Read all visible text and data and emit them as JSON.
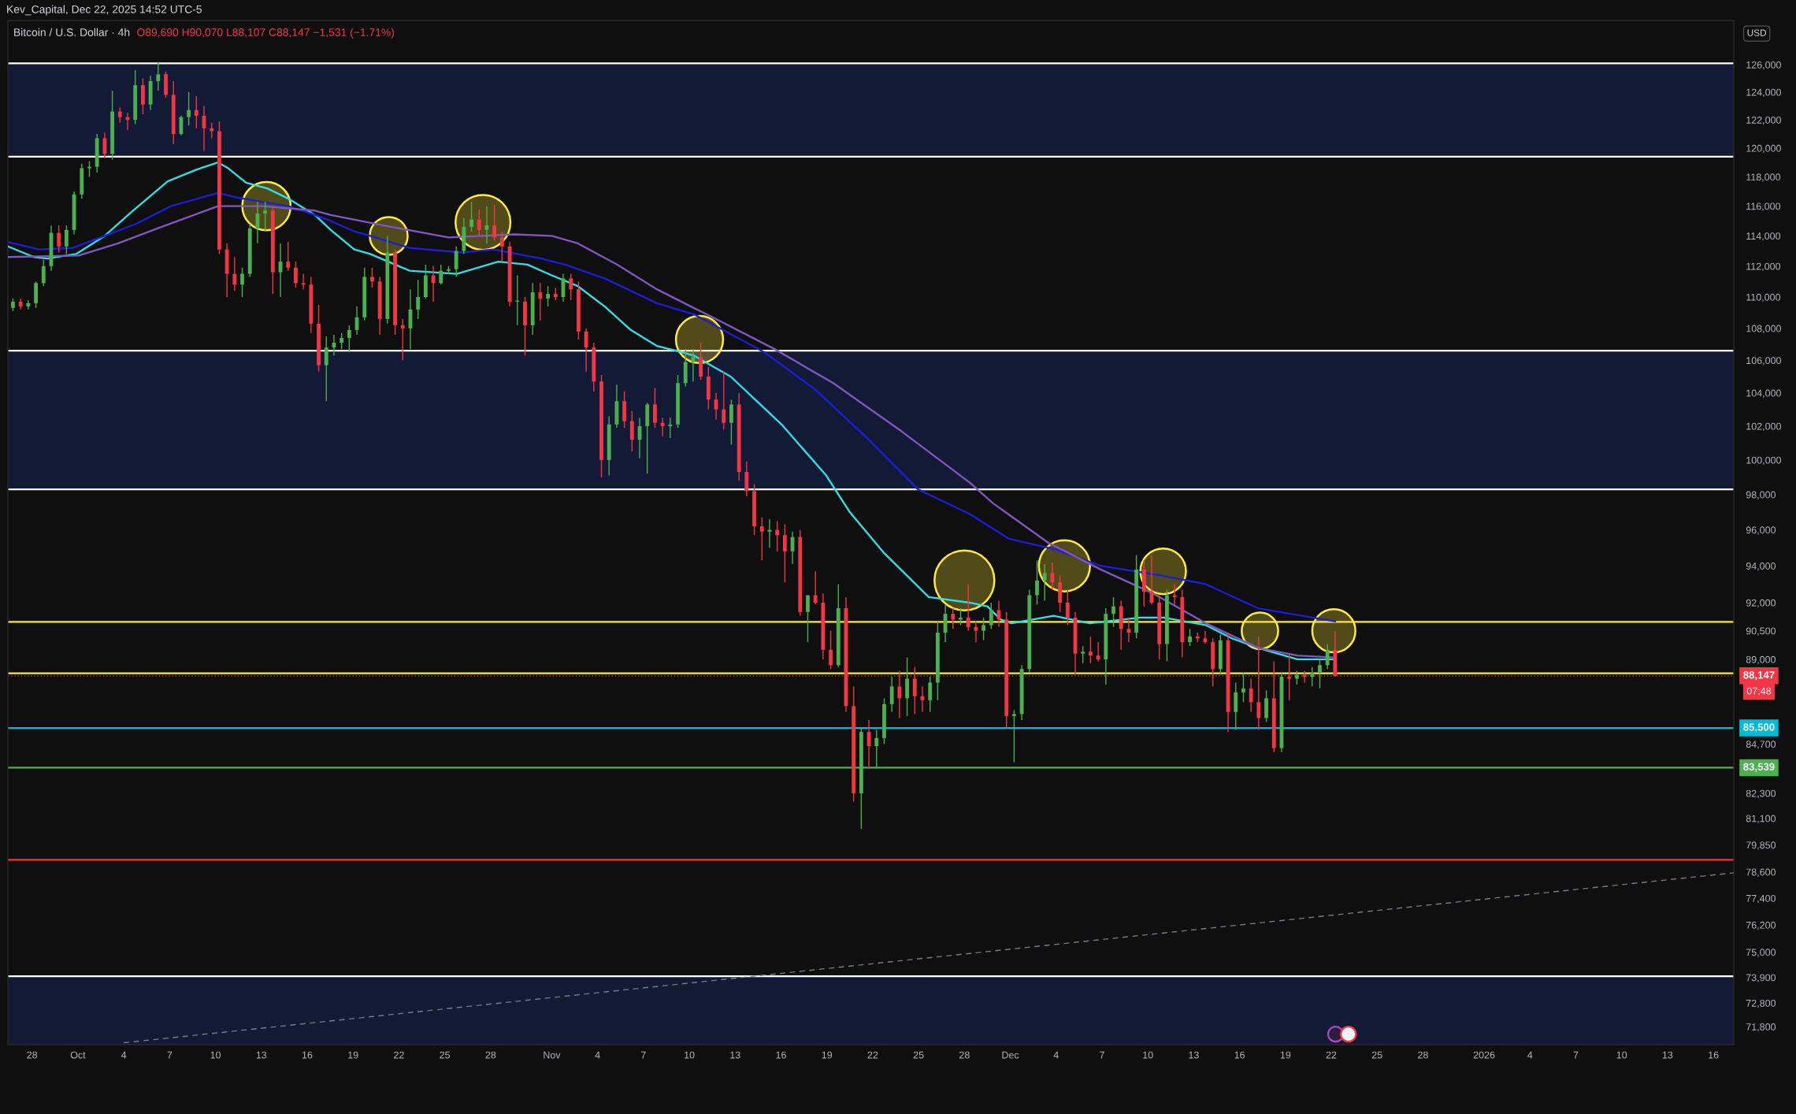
{
  "chart_data": {
    "type": "candlestick",
    "title": "Bitcoin / U.S. Dollar · 4h",
    "ylabel": "USD",
    "annotations": [
      "Kev_Capital, Dec 22, 2025 14:52 UTC-5",
      "O89,690 H90,070 L88,107 C88,147 −1,531 (−1.71%)",
      "07:48"
    ],
    "log": true,
    "xlim": [
      "2025-09-26T10:00",
      "2026-01-17T08:00"
    ],
    "ylim": [
      71050,
      129300
    ],
    "xticks": [
      {
        "value": "2025-09-28",
        "label": "28"
      },
      {
        "value": "2025-10-01",
        "label": "Oct"
      },
      {
        "value": "2025-10-04",
        "label": "4"
      },
      {
        "value": "2025-10-07",
        "label": "7"
      },
      {
        "value": "2025-10-10",
        "label": "10"
      },
      {
        "value": "2025-10-13",
        "label": "13"
      },
      {
        "value": "2025-10-16",
        "label": "16"
      },
      {
        "value": "2025-10-19",
        "label": "19"
      },
      {
        "value": "2025-10-22",
        "label": "22"
      },
      {
        "value": "2025-10-25",
        "label": "25"
      },
      {
        "value": "2025-10-28",
        "label": "28"
      },
      {
        "value": "2025-11-01",
        "label": "Nov"
      },
      {
        "value": "2025-11-04",
        "label": "4"
      },
      {
        "value": "2025-11-07",
        "label": "7"
      },
      {
        "value": "2025-11-10",
        "label": "10"
      },
      {
        "value": "2025-11-13",
        "label": "13"
      },
      {
        "value": "2025-11-16",
        "label": "16"
      },
      {
        "value": "2025-11-19",
        "label": "19"
      },
      {
        "value": "2025-11-22",
        "label": "22"
      },
      {
        "value": "2025-11-25",
        "label": "25"
      },
      {
        "value": "2025-11-28",
        "label": "28"
      },
      {
        "value": "2025-12-01",
        "label": "Dec"
      },
      {
        "value": "2025-12-04",
        "label": "4"
      },
      {
        "value": "2025-12-07",
        "label": "7"
      },
      {
        "value": "2025-12-10",
        "label": "10"
      },
      {
        "value": "2025-12-13",
        "label": "13"
      },
      {
        "value": "2025-12-16",
        "label": "16"
      },
      {
        "value": "2025-12-19",
        "label": "19"
      },
      {
        "value": "2025-12-22",
        "label": "22"
      },
      {
        "value": "2025-12-25",
        "label": "25"
      },
      {
        "value": "2025-12-28",
        "label": "28"
      },
      {
        "value": "2026-01-01",
        "label": "2026"
      },
      {
        "value": "2026-01-04",
        "label": "4"
      },
      {
        "value": "2026-01-07",
        "label": "7"
      },
      {
        "value": "2026-01-10",
        "label": "10"
      },
      {
        "value": "2026-01-13",
        "label": "13"
      },
      {
        "value": "2026-01-16",
        "label": "16"
      }
    ],
    "yticks": [
      {
        "value": 126000,
        "label": "126,000"
      },
      {
        "value": 124000,
        "label": "124,000"
      },
      {
        "value": 122000,
        "label": "122,000"
      },
      {
        "value": 120000,
        "label": "120,000"
      },
      {
        "value": 118000,
        "label": "118,000"
      },
      {
        "value": 116000,
        "label": "116,000"
      },
      {
        "value": 114000,
        "label": "114,000"
      },
      {
        "value": 112000,
        "label": "112,000"
      },
      {
        "value": 110000,
        "label": "110,000"
      },
      {
        "value": 108000,
        "label": "108,000"
      },
      {
        "value": 106000,
        "label": "106,000"
      },
      {
        "value": 104000,
        "label": "104,000"
      },
      {
        "value": 102000,
        "label": "102,000"
      },
      {
        "value": 100000,
        "label": "100,000"
      },
      {
        "value": 98000,
        "label": "98,000"
      },
      {
        "value": 96000,
        "label": "96,000"
      },
      {
        "value": 94000,
        "label": "94,000"
      },
      {
        "value": 92000,
        "label": "92,000"
      },
      {
        "value": 90500,
        "label": "90,500"
      },
      {
        "value": 89000,
        "label": "89,000"
      },
      {
        "value": 84700,
        "label": "84,700"
      },
      {
        "value": 82300,
        "label": "82,300"
      },
      {
        "value": 81100,
        "label": "81,100"
      },
      {
        "value": 79850,
        "label": "79,850"
      },
      {
        "value": 78600,
        "label": "78,600"
      },
      {
        "value": 77400,
        "label": "77,400"
      },
      {
        "value": 76200,
        "label": "76,200"
      },
      {
        "value": 75000,
        "label": "75,000"
      },
      {
        "value": 73900,
        "label": "73,900"
      },
      {
        "value": 72800,
        "label": "72,800"
      },
      {
        "value": 71800,
        "label": "71,800"
      }
    ],
    "bands": [
      {
        "axis": "y",
        "from": 119400,
        "to": 126100,
        "color": "#131a35"
      },
      {
        "axis": "y",
        "from": 98300,
        "to": 106600,
        "color": "#131a35"
      },
      {
        "axis": "y",
        "from": 71050,
        "to": 73950,
        "color": "#131a35"
      }
    ],
    "ref_lines": [
      {
        "axis": "y",
        "value": 126100,
        "color": "#ffffff"
      },
      {
        "axis": "y",
        "value": 119400,
        "color": "#ffffff"
      },
      {
        "axis": "y",
        "value": 106600,
        "color": "#ffffff"
      },
      {
        "axis": "y",
        "value": 98300,
        "color": "#ffffff"
      },
      {
        "axis": "y",
        "value": 90970,
        "color": "#ffeb3b"
      },
      {
        "axis": "y",
        "value": 88280,
        "color": "#ffeb3b"
      },
      {
        "axis": "y",
        "value": 88147,
        "label": "88,147",
        "color": "#f23645",
        "line_style": "dotted"
      },
      {
        "axis": "y",
        "value": 85500,
        "label": "85,500",
        "color": "#00bcd4"
      },
      {
        "axis": "y",
        "value": 83539,
        "label": "83,539",
        "color": "#4caf50"
      },
      {
        "axis": "y",
        "value": 79160,
        "color": "#f23645"
      },
      {
        "axis": "y",
        "value": 73950,
        "color": "#ffffff"
      }
    ],
    "series": [
      {
        "x": [
          "2025-09-26T18:00",
          "2025-09-27T06:00",
          "2025-09-27T18:00",
          "2025-09-28T06:00",
          "2025-09-28T18:00",
          "2025-09-29T06:00",
          "2025-09-29T18:00",
          "2025-09-30T06:00",
          "2025-09-30T18:00",
          "2025-10-01T06:00",
          "2025-10-01T18:00",
          "2025-10-02T06:00",
          "2025-10-02T18:00",
          "2025-10-03T06:00",
          "2025-10-03T18:00",
          "2025-10-04T06:00",
          "2025-10-04T18:00",
          "2025-10-05T06:00",
          "2025-10-05T18:00",
          "2025-10-06T06:00",
          "2025-10-06T18:00",
          "2025-10-07T06:00",
          "2025-10-07T18:00",
          "2025-10-08T06:00",
          "2025-10-08T18:00",
          "2025-10-09T06:00",
          "2025-10-09T18:00",
          "2025-10-10T06:00",
          "2025-10-10T18:00",
          "2025-10-11T06:00",
          "2025-10-11T18:00",
          "2025-10-12T06:00",
          "2025-10-12T18:00",
          "2025-10-13T06:00",
          "2025-10-13T18:00",
          "2025-10-14T06:00",
          "2025-10-14T18:00",
          "2025-10-15T06:00",
          "2025-10-15T18:00",
          "2025-10-16T06:00",
          "2025-10-16T18:00",
          "2025-10-17T06:00",
          "2025-10-17T18:00",
          "2025-10-18T06:00",
          "2025-10-18T18:00",
          "2025-10-19T06:00",
          "2025-10-19T18:00",
          "2025-10-20T06:00",
          "2025-10-20T18:00",
          "2025-10-21T06:00",
          "2025-10-21T18:00",
          "2025-10-22T06:00",
          "2025-10-22T18:00",
          "2025-10-23T06:00",
          "2025-10-23T18:00",
          "2025-10-24T06:00",
          "2025-10-24T18:00",
          "2025-10-25T06:00",
          "2025-10-25T18:00",
          "2025-10-26T06:00",
          "2025-10-26T18:00",
          "2025-10-27T06:00",
          "2025-10-27T18:00",
          "2025-10-28T06:00",
          "2025-10-28T18:00",
          "2025-10-29T06:00",
          "2025-10-29T18:00",
          "2025-10-30T06:00",
          "2025-10-30T18:00",
          "2025-10-31T06:00",
          "2025-10-31T18:00",
          "2025-11-01T06:00",
          "2025-11-01T18:00",
          "2025-11-02T06:00",
          "2025-11-02T18:00",
          "2025-11-03T06:00",
          "2025-11-03T18:00",
          "2025-11-04T06:00",
          "2025-11-04T18:00",
          "2025-11-05T06:00",
          "2025-11-05T18:00",
          "2025-11-06T06:00",
          "2025-11-06T18:00",
          "2025-11-07T06:00",
          "2025-11-07T18:00",
          "2025-11-08T06:00",
          "2025-11-08T18:00",
          "2025-11-09T06:00",
          "2025-11-09T18:00",
          "2025-11-10T06:00",
          "2025-11-10T18:00",
          "2025-11-11T06:00",
          "2025-11-11T18:00",
          "2025-11-12T06:00",
          "2025-11-12T18:00",
          "2025-11-13T06:00",
          "2025-11-13T18:00",
          "2025-11-14T06:00",
          "2025-11-14T18:00",
          "2025-11-15T06:00",
          "2025-11-15T18:00",
          "2025-11-16T06:00",
          "2025-11-16T18:00",
          "2025-11-17T06:00",
          "2025-11-17T18:00",
          "2025-11-18T06:00",
          "2025-11-18T18:00",
          "2025-11-19T06:00",
          "2025-11-19T18:00",
          "2025-11-20T06:00",
          "2025-11-20T18:00",
          "2025-11-21T06:00",
          "2025-11-21T18:00",
          "2025-11-22T06:00",
          "2025-11-22T18:00",
          "2025-11-23T06:00",
          "2025-11-23T18:00",
          "2025-11-24T06:00",
          "2025-11-24T18:00",
          "2025-11-25T06:00",
          "2025-11-25T18:00",
          "2025-11-26T06:00",
          "2025-11-26T18:00",
          "2025-11-27T06:00",
          "2025-11-27T18:00",
          "2025-11-28T06:00",
          "2025-11-28T18:00",
          "2025-11-29T06:00",
          "2025-11-29T18:00",
          "2025-11-30T06:00",
          "2025-11-30T18:00",
          "2025-12-01T06:00",
          "2025-12-01T18:00",
          "2025-12-02T06:00",
          "2025-12-02T18:00",
          "2025-12-03T06:00",
          "2025-12-03T18:00",
          "2025-12-04T06:00",
          "2025-12-04T18:00",
          "2025-12-05T06:00",
          "2025-12-05T18:00",
          "2025-12-06T06:00",
          "2025-12-06T18:00",
          "2025-12-07T06:00",
          "2025-12-07T18:00",
          "2025-12-08T06:00",
          "2025-12-08T18:00",
          "2025-12-09T06:00",
          "2025-12-09T18:00",
          "2025-12-10T06:00",
          "2025-12-10T18:00",
          "2025-12-11T06:00",
          "2025-12-11T18:00",
          "2025-12-12T06:00",
          "2025-12-12T18:00",
          "2025-12-13T06:00",
          "2025-12-13T18:00",
          "2025-12-14T06:00",
          "2025-12-14T18:00",
          "2025-12-15T06:00",
          "2025-12-15T18:00",
          "2025-12-16T06:00",
          "2025-12-16T18:00",
          "2025-12-17T06:00",
          "2025-12-17T18:00",
          "2025-12-18T06:00",
          "2025-12-18T18:00",
          "2025-12-19T06:00",
          "2025-12-19T18:00",
          "2025-12-20T06:00",
          "2025-12-20T18:00",
          "2025-12-21T06:00",
          "2025-12-21T18:00",
          "2025-12-22T06:00"
        ],
        "ohlc": [
          [
            109300,
            109900,
            109100,
            109700
          ],
          [
            109700,
            109900,
            109200,
            109400
          ],
          [
            109400,
            109800,
            109200,
            109600
          ],
          [
            109600,
            111000,
            109300,
            110900
          ],
          [
            110900,
            112400,
            110700,
            112000
          ],
          [
            112000,
            114700,
            111700,
            114200
          ],
          [
            114200,
            114700,
            112900,
            113300
          ],
          [
            113300,
            114700,
            112800,
            114400
          ],
          [
            114400,
            117000,
            114100,
            116800
          ],
          [
            116800,
            118900,
            116500,
            118600
          ],
          [
            118600,
            119100,
            118000,
            118700
          ],
          [
            118700,
            121000,
            118300,
            120700
          ],
          [
            120700,
            121100,
            119300,
            119600
          ],
          [
            119600,
            124100,
            119200,
            122600
          ],
          [
            122600,
            122900,
            121800,
            122200
          ],
          [
            122200,
            122500,
            121300,
            122000
          ],
          [
            122000,
            125600,
            121700,
            124500
          ],
          [
            124500,
            125000,
            122400,
            123100
          ],
          [
            123100,
            125200,
            122700,
            124800
          ],
          [
            124800,
            126200,
            124100,
            125300
          ],
          [
            125300,
            125500,
            123600,
            123800
          ],
          [
            123800,
            124800,
            120300,
            121000
          ],
          [
            121000,
            122300,
            120900,
            122200
          ],
          [
            122200,
            124000,
            121600,
            122700
          ],
          [
            122700,
            123700,
            121400,
            122300
          ],
          [
            122300,
            123000,
            119800,
            121400
          ],
          [
            121400,
            121800,
            120700,
            121200
          ],
          [
            121200,
            121900,
            112800,
            113100
          ],
          [
            113100,
            113500,
            110000,
            111500
          ],
          [
            111500,
            112600,
            110400,
            110800
          ],
          [
            110800,
            111900,
            110000,
            111500
          ],
          [
            111500,
            114800,
            111300,
            114500
          ],
          [
            114500,
            116300,
            113500,
            115500
          ],
          [
            115500,
            116300,
            114300,
            115700
          ],
          [
            115700,
            116000,
            110200,
            111600
          ],
          [
            111600,
            113500,
            110000,
            112300
          ],
          [
            112300,
            113600,
            111700,
            111900
          ],
          [
            111900,
            112300,
            110600,
            110900
          ],
          [
            110900,
            111500,
            110500,
            110800
          ],
          [
            110800,
            111300,
            107700,
            108300
          ],
          [
            108300,
            109500,
            105300,
            105700
          ],
          [
            105700,
            107500,
            103500,
            106800
          ],
          [
            106800,
            107600,
            106300,
            107100
          ],
          [
            107100,
            107700,
            106700,
            107400
          ],
          [
            107400,
            108200,
            106500,
            107900
          ],
          [
            107900,
            109400,
            107600,
            108700
          ],
          [
            108700,
            111900,
            108500,
            111300
          ],
          [
            111300,
            111900,
            110600,
            111000
          ],
          [
            111000,
            111300,
            107600,
            108600
          ],
          [
            108600,
            114000,
            108300,
            112900
          ],
          [
            112900,
            113100,
            107600,
            108200
          ],
          [
            108200,
            108600,
            106000,
            108000
          ],
          [
            108000,
            110500,
            106700,
            109200
          ],
          [
            109200,
            111100,
            108600,
            110000
          ],
          [
            110000,
            112100,
            109900,
            111400
          ],
          [
            111400,
            112000,
            109700,
            110900
          ],
          [
            110900,
            112100,
            110800,
            111700
          ],
          [
            111700,
            112000,
            111500,
            111800
          ],
          [
            111800,
            113300,
            111300,
            113000
          ],
          [
            113000,
            115200,
            112800,
            114600
          ],
          [
            114600,
            116300,
            114300,
            115100
          ],
          [
            115100,
            115800,
            114000,
            114400
          ],
          [
            114400,
            116000,
            113500,
            114700
          ],
          [
            114700,
            116100,
            113700,
            113900
          ],
          [
            113900,
            114300,
            112300,
            113300
          ],
          [
            113300,
            113600,
            109400,
            109700
          ],
          [
            109700,
            111400,
            108200,
            109700
          ],
          [
            109700,
            110000,
            106300,
            108200
          ],
          [
            108200,
            110900,
            107600,
            110300
          ],
          [
            110300,
            110900,
            108500,
            109900
          ],
          [
            109900,
            110700,
            109400,
            110200
          ],
          [
            110200,
            110600,
            109800,
            110000
          ],
          [
            110000,
            111500,
            109700,
            111200
          ],
          [
            111200,
            111500,
            109800,
            110500
          ],
          [
            110500,
            111000,
            107300,
            107800
          ],
          [
            107800,
            108000,
            105300,
            106800
          ],
          [
            106800,
            107100,
            104100,
            104700
          ],
          [
            104700,
            105100,
            99000,
            100000
          ],
          [
            100000,
            102600,
            99100,
            102100
          ],
          [
            102100,
            104500,
            101900,
            103500
          ],
          [
            103500,
            104100,
            101900,
            102300
          ],
          [
            102300,
            102900,
            100500,
            101200
          ],
          [
            101200,
            102500,
            100100,
            102000
          ],
          [
            102000,
            103400,
            99200,
            103300
          ],
          [
            103300,
            104300,
            101900,
            102200
          ],
          [
            102200,
            102500,
            101400,
            102000
          ],
          [
            102000,
            102500,
            101300,
            102100
          ],
          [
            102100,
            105100,
            101900,
            104600
          ],
          [
            104600,
            106700,
            104400,
            105900
          ],
          [
            105900,
            106700,
            104700,
            106200
          ],
          [
            106200,
            107100,
            104800,
            105000
          ],
          [
            105000,
            105600,
            103000,
            103600
          ],
          [
            103600,
            104000,
            102400,
            103000
          ],
          [
            103000,
            105300,
            101800,
            102200
          ],
          [
            102200,
            103600,
            100900,
            103300
          ],
          [
            103300,
            104000,
            98800,
            99300
          ],
          [
            99300,
            99900,
            97900,
            98200
          ],
          [
            98200,
            98600,
            95700,
            96200
          ],
          [
            96200,
            96700,
            94300,
            95900
          ],
          [
            95900,
            96600,
            95000,
            96000
          ],
          [
            96000,
            96500,
            94800,
            95700
          ],
          [
            95700,
            96300,
            93100,
            94800
          ],
          [
            94800,
            95900,
            94100,
            95600
          ],
          [
            95600,
            96000,
            91300,
            91500
          ],
          [
            91500,
            92400,
            89900,
            92400
          ],
          [
            92400,
            93700,
            91900,
            92000
          ],
          [
            92000,
            92500,
            89000,
            89500
          ],
          [
            89500,
            90500,
            88500,
            88700
          ],
          [
            88700,
            93000,
            88600,
            91700
          ],
          [
            91700,
            92300,
            86300,
            86600
          ],
          [
            86600,
            87600,
            81900,
            82300
          ],
          [
            82300,
            85500,
            80600,
            85300
          ],
          [
            85300,
            85900,
            83500,
            84600
          ],
          [
            84600,
            85400,
            83500,
            85000
          ],
          [
            85000,
            87000,
            84700,
            86700
          ],
          [
            86700,
            88100,
            86300,
            87600
          ],
          [
            87600,
            88400,
            86000,
            87000
          ],
          [
            87000,
            89100,
            86100,
            88000
          ],
          [
            88000,
            88600,
            86200,
            87100
          ],
          [
            87100,
            87600,
            86300,
            86900
          ],
          [
            86900,
            88100,
            86300,
            87800
          ],
          [
            87800,
            91000,
            86900,
            90400
          ],
          [
            90400,
            91900,
            89900,
            91400
          ],
          [
            91400,
            91700,
            90600,
            91100
          ],
          [
            91100,
            91700,
            90800,
            91200
          ],
          [
            91200,
            93000,
            90500,
            90700
          ],
          [
            90700,
            91000,
            89900,
            90500
          ],
          [
            90500,
            91200,
            90000,
            90800
          ],
          [
            90800,
            92000,
            90600,
            91600
          ],
          [
            91600,
            92100,
            90700,
            91100
          ],
          [
            91100,
            91500,
            85500,
            86100
          ],
          [
            86100,
            86400,
            83800,
            86200
          ],
          [
            86200,
            88700,
            85900,
            88500
          ],
          [
            88500,
            92700,
            88300,
            92400
          ],
          [
            92400,
            94300,
            91900,
            93200
          ],
          [
            93200,
            94100,
            92100,
            93600
          ],
          [
            93600,
            94200,
            92700,
            93100
          ],
          [
            93100,
            93500,
            91500,
            92000
          ],
          [
            92000,
            92700,
            90800,
            91200
          ],
          [
            91200,
            91500,
            88200,
            89300
          ],
          [
            89300,
            89700,
            88800,
            89400
          ],
          [
            89400,
            90200,
            88800,
            89200
          ],
          [
            89200,
            89900,
            88900,
            89000
          ],
          [
            89000,
            91700,
            87700,
            91400
          ],
          [
            91400,
            92300,
            90700,
            91800
          ],
          [
            91800,
            92100,
            89500,
            90600
          ],
          [
            90600,
            91200,
            89900,
            90400
          ],
          [
            90400,
            94600,
            90100,
            93800
          ],
          [
            93800,
            94300,
            91800,
            92600
          ],
          [
            92600,
            94600,
            91900,
            92000
          ],
          [
            92000,
            92400,
            89000,
            89800
          ],
          [
            89800,
            92700,
            88900,
            92400
          ],
          [
            92400,
            93000,
            91900,
            92300
          ],
          [
            92300,
            92700,
            89100,
            89900
          ],
          [
            89900,
            90600,
            89700,
            90200
          ],
          [
            90200,
            90400,
            89900,
            90100
          ],
          [
            90100,
            90500,
            89800,
            89900
          ],
          [
            89900,
            90100,
            87600,
            88500
          ],
          [
            88500,
            90300,
            88200,
            90000
          ],
          [
            90000,
            90400,
            85300,
            86300
          ],
          [
            86300,
            87800,
            85400,
            87300
          ],
          [
            87300,
            88300,
            86800,
            87500
          ],
          [
            87500,
            88000,
            86300,
            86800
          ],
          [
            86800,
            90200,
            85400,
            86000
          ],
          [
            86000,
            87400,
            85800,
            87000
          ],
          [
            87000,
            88900,
            84300,
            84500
          ],
          [
            84500,
            88300,
            84300,
            88100
          ],
          [
            88100,
            89300,
            86900,
            88000
          ],
          [
            88000,
            88400,
            87700,
            88200
          ],
          [
            88200,
            88400,
            87800,
            88100
          ],
          [
            88100,
            88600,
            87600,
            88300
          ],
          [
            88300,
            89000,
            87500,
            88700
          ],
          [
            88700,
            89800,
            88500,
            89500
          ],
          [
            89500,
            90500,
            88100,
            88147
          ]
        ],
        "colors": [
          "#4caf50",
          "#f23645",
          "#4caf50",
          "#4caf50",
          "#4caf50",
          "#4caf50",
          "#f23645",
          "#4caf50",
          "#4caf50",
          "#4caf50",
          "#4caf50",
          "#4caf50",
          "#f23645",
          "#4caf50",
          "#f23645",
          "#f23645",
          "#4caf50",
          "#f23645",
          "#4caf50",
          "#4caf50",
          "#f23645",
          "#f23645",
          "#4caf50",
          "#4caf50",
          "#f23645",
          "#f23645",
          "#f23645",
          "#f23645",
          "#f23645",
          "#f23645",
          "#4caf50",
          "#4caf50",
          "#4caf50",
          "#4caf50",
          "#f23645",
          "#4caf50",
          "#f23645",
          "#f23645",
          "#f23645",
          "#f23645",
          "#f23645",
          "#4caf50",
          "#4caf50",
          "#4caf50",
          "#4caf50",
          "#4caf50",
          "#4caf50",
          "#f23645",
          "#f23645",
          "#4caf50",
          "#f23645",
          "#f23645",
          "#4caf50",
          "#4caf50",
          "#4caf50",
          "#f23645",
          "#4caf50",
          "#4caf50",
          "#4caf50",
          "#4caf50",
          "#4caf50",
          "#f23645",
          "#4caf50",
          "#f23645",
          "#f23645",
          "#f23645",
          "#4caf50",
          "#f23645",
          "#4caf50",
          "#f23645",
          "#4caf50",
          "#f23645",
          "#4caf50",
          "#f23645",
          "#f23645",
          "#f23645",
          "#f23645",
          "#f23645",
          "#4caf50",
          "#4caf50",
          "#f23645",
          "#f23645",
          "#4caf50",
          "#4caf50",
          "#f23645",
          "#f23645",
          "#4caf50",
          "#4caf50",
          "#4caf50",
          "#4caf50",
          "#f23645",
          "#f23645",
          "#f23645",
          "#f23645",
          "#4caf50",
          "#f23645",
          "#f23645",
          "#f23645",
          "#f23645",
          "#4caf50",
          "#f23645",
          "#f23645",
          "#4caf50",
          "#f23645",
          "#4caf50",
          "#f23645",
          "#f23645",
          "#f23645",
          "#4caf50",
          "#f23645",
          "#f23645",
          "#4caf50",
          "#f23645",
          "#4caf50",
          "#4caf50",
          "#4caf50",
          "#f23645",
          "#4caf50",
          "#f23645",
          "#f23645",
          "#4caf50",
          "#4caf50",
          "#4caf50",
          "#f23645",
          "#4caf50",
          "#f23645",
          "#f23645",
          "#4caf50",
          "#4caf50",
          "#f23645",
          "#f23645",
          "#4caf50",
          "#4caf50",
          "#4caf50",
          "#4caf50",
          "#4caf50",
          "#f23645",
          "#f23645",
          "#f23645",
          "#f23645",
          "#4caf50",
          "#f23645",
          "#f23645",
          "#4caf50",
          "#4caf50",
          "#f23645",
          "#f23645",
          "#4caf50",
          "#f23645",
          "#f23645",
          "#f23645",
          "#4caf50",
          "#f23645",
          "#f23645",
          "#4caf50",
          "#f23645",
          "#f23645",
          "#f23645",
          "#4caf50",
          "#f23645",
          "#4caf50",
          "#4caf50",
          "#f23645",
          "#f23645",
          "#4caf50",
          "#f23645",
          "#4caf50",
          "#f23645",
          "#4caf50",
          "#f23645",
          "#4caf50",
          "#4caf50",
          "#4caf50",
          "#f23645"
        ]
      },
      {
        "type": "line",
        "color": "#2ee0e6",
        "x": [
          "2025-09-26T10:00",
          "2025-09-28T03:00",
          "2025-09-29T00:00",
          "2025-09-30T21:00",
          "2025-10-02T18:00",
          "2025-10-04T12:00",
          "2025-10-06T21:00",
          "2025-10-08T18:00",
          "2025-10-10T04:00",
          "2025-10-10T20:00",
          "2025-10-12T00:00",
          "2025-10-13T10:00",
          "2025-10-14T19:00",
          "2025-10-16T12:00",
          "2025-10-17T13:00",
          "2025-10-19T02:00",
          "2025-10-20T03:00",
          "2025-10-22T17:00",
          "2025-10-25T19:00",
          "2025-10-28T12:00",
          "2025-10-30T10:00",
          "2025-11-01T00:00",
          "2025-11-02T17:00",
          "2025-11-04T11:00",
          "2025-11-06T04:00",
          "2025-11-07T21:00",
          "2025-11-09T13:00",
          "2025-11-10T07:00",
          "2025-11-12T17:00",
          "2025-11-16T01:00",
          "2025-11-18T23:00",
          "2025-11-20T12:00",
          "2025-11-22T18:00",
          "2025-11-25T16:00",
          "2025-11-28T08:00",
          "2025-11-29T12:00",
          "2025-11-30T09:00",
          "2025-12-01T02:00",
          "2025-12-03T20:00",
          "2025-12-06T05:00",
          "2025-12-09T12:00",
          "2025-12-11T01:00",
          "2025-12-13T19:00",
          "2025-12-15T12:00",
          "2025-12-17T05:00",
          "2025-12-19T19:00",
          "2025-12-22T06:00"
        ],
        "values": [
          113300,
          112600,
          112500,
          112800,
          114000,
          115600,
          117700,
          118500,
          119000,
          118600,
          117600,
          117200,
          116500,
          115400,
          114400,
          113100,
          112800,
          111700,
          111500,
          112300,
          112100,
          111400,
          110700,
          109400,
          107900,
          106900,
          106500,
          106300,
          105000,
          102100,
          99100,
          97000,
          94700,
          92300,
          92000,
          91800,
          91100,
          90900,
          91300,
          90900,
          91200,
          91200,
          90800,
          90100,
          89600,
          89000,
          89000
        ]
      },
      {
        "type": "line",
        "color": "#1c1cdb",
        "x": [
          "2025-09-26T10:00",
          "2025-09-28T11:00",
          "2025-09-30T16:00",
          "2025-10-02T18:00",
          "2025-10-04T19:00",
          "2025-10-07T02:00",
          "2025-10-10T04:00",
          "2025-10-11T08:00",
          "2025-10-13T01:00",
          "2025-10-14T19:00",
          "2025-10-16T12:00",
          "2025-10-17T13:00",
          "2025-10-19T02:00",
          "2025-10-20T03:00",
          "2025-10-22T17:00",
          "2025-10-26T03:00",
          "2025-10-28T05:00",
          "2025-10-31T07:00",
          "2025-11-01T21:00",
          "2025-11-04T11:00",
          "2025-11-07T21:00",
          "2025-11-10T07:00",
          "2025-11-14T22:00",
          "2025-11-18T06:00",
          "2025-11-21T15:00",
          "2025-11-24T23:00",
          "2025-11-28T08:00",
          "2025-11-30T22:00",
          "2025-12-04T00:00",
          "2025-12-06T22:00",
          "2025-12-10T17:00",
          "2025-12-13T19:00",
          "2025-12-17T05:00",
          "2025-12-22T06:00"
        ],
        "values": [
          113600,
          113100,
          113200,
          114000,
          114800,
          116000,
          116900,
          116600,
          116300,
          116000,
          115400,
          115000,
          114300,
          114000,
          113200,
          112900,
          113100,
          112500,
          112100,
          111200,
          109600,
          108900,
          106500,
          104200,
          101300,
          98300,
          96900,
          95500,
          94900,
          94000,
          93500,
          93000,
          91700,
          91000
        ]
      },
      {
        "type": "line",
        "color": "#7e57c2",
        "x": [
          "2025-09-26T10:00",
          "2025-10-01T01:00",
          "2025-10-03T15:00",
          "2025-10-06T05:00",
          "2025-10-10T04:00",
          "2025-10-13T01:00",
          "2025-10-16T12:00",
          "2025-10-17T13:00",
          "2025-10-21T00:00",
          "2025-10-25T06:00",
          "2025-10-29T13:00",
          "2025-11-01T00:00",
          "2025-11-02T17:00",
          "2025-11-05T07:00",
          "2025-11-07T21:00",
          "2025-11-10T07:00",
          "2025-11-11T03:00",
          "2025-11-15T14:00",
          "2025-11-19T10:00",
          "2025-11-23T21:00",
          "2025-11-28T08:00",
          "2025-11-29T21:00",
          "2025-12-03T11:00",
          "2025-12-06T22:00",
          "2025-12-10T08:00",
          "2025-12-13T19:00",
          "2025-12-17T05:00",
          "2025-12-19T19:00",
          "2025-12-22T06:00"
        ],
        "values": [
          112600,
          112700,
          113500,
          114500,
          116000,
          116000,
          115700,
          115400,
          114700,
          113900,
          114100,
          114000,
          113500,
          112100,
          110500,
          109300,
          108900,
          106700,
          104600,
          101700,
          98700,
          97500,
          95300,
          93800,
          92500,
          90900,
          89600,
          89200,
          89100
        ]
      },
      {
        "type": "line",
        "color": "#787b86",
        "line_style": "dashed",
        "x": [
          "2025-10-04T00:00",
          "2026-01-17T08:00"
        ],
        "values": [
          71130,
          78560
        ]
      },
      {
        "type": "bubble",
        "color": "#ffeb3b",
        "marker": "circle",
        "x": [
          "2025-10-13T08:00",
          "2025-10-21T08:00",
          "2025-10-27T12:00",
          "2025-11-10T16:00",
          "2025-11-28T00:00",
          "2025-12-04T13:00",
          "2025-12-11T00:00",
          "2025-12-17T08:00",
          "2025-12-22T04:00"
        ],
        "values": [
          116000,
          114000,
          114900,
          107300,
          93200,
          94000,
          93700,
          90500,
          90500
        ],
        "sizes": [
          0.65,
          0.4,
          0.84,
          0.62,
          1,
          0.73,
          0.58,
          0.37,
          0.52
        ]
      }
    ]
  }
}
